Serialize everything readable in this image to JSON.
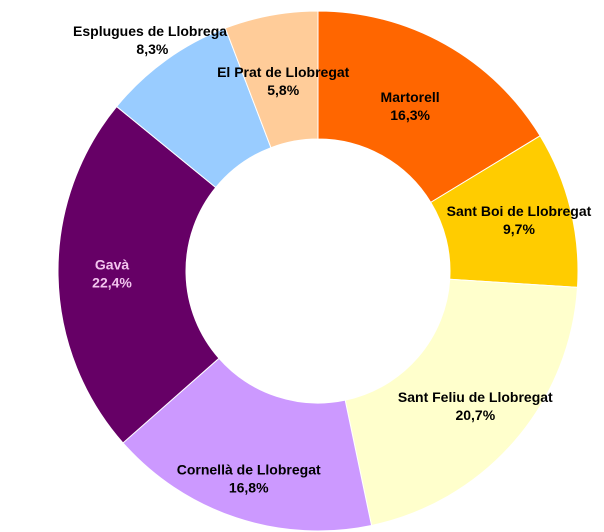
{
  "chart_data": {
    "type": "donut",
    "labels": [
      "Martorell",
      "Sant Boi de Llobregat",
      "Sant Feliu de Llobregat",
      "Cornellà de Llobregat",
      "Gavà",
      "Esplugues de Llobregat",
      "El Prat de Llobregat"
    ],
    "values": [
      16.3,
      9.7,
      20.7,
      16.8,
      22.4,
      8.3,
      5.8
    ],
    "value_labels": [
      "16,3%",
      "9,7%",
      "20,7%",
      "16,8%",
      "22,4%",
      "8,3%",
      "5,8%"
    ],
    "colors": [
      "#ff6600",
      "#ffcc00",
      "#ffffcc",
      "#cc99ff",
      "#660066",
      "#99ccff",
      "#ffcc99"
    ]
  }
}
